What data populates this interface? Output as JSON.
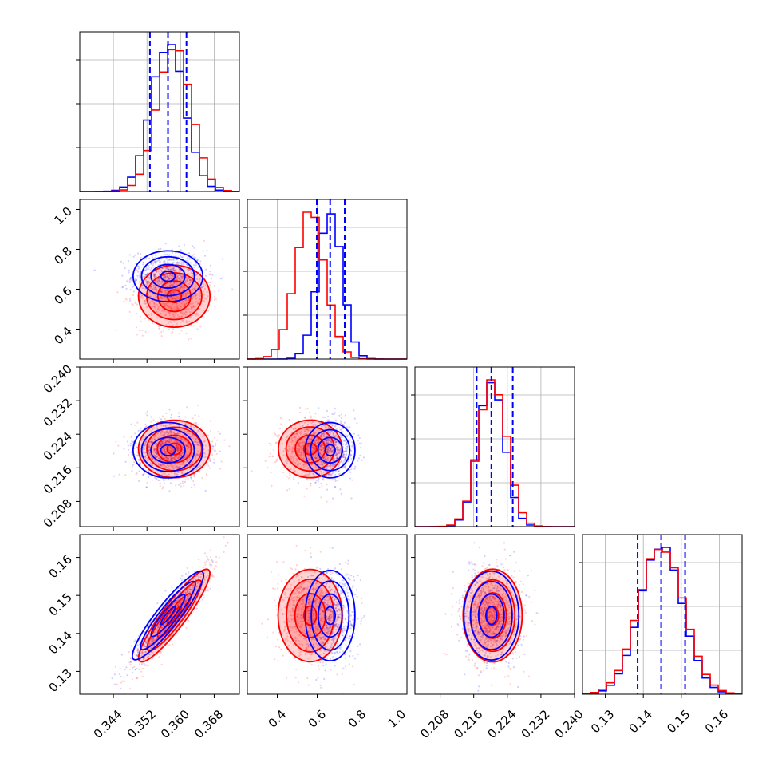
{
  "chart_data": {
    "type": "corner",
    "parameters": [
      {
        "range": [
          0.336,
          0.374
        ],
        "ticks": [
          "0.344",
          "0.352",
          "0.360",
          "0.368"
        ],
        "tick_values": [
          0.344,
          0.352,
          0.36,
          0.368
        ]
      },
      {
        "range": [
          0.25,
          1.05
        ],
        "ticks": [
          "0.4",
          "0.6",
          "0.8",
          "1.0"
        ],
        "tick_values": [
          0.4,
          0.6,
          0.8,
          1.0
        ]
      },
      {
        "range": [
          0.202,
          0.24
        ],
        "ticks": [
          "0.208",
          "0.216",
          "0.224",
          "0.232",
          "0.240"
        ],
        "tick_values": [
          0.208,
          0.216,
          0.224,
          0.232,
          0.24
        ]
      },
      {
        "range": [
          0.124,
          0.166
        ],
        "ticks": [
          "0.13",
          "0.14",
          "0.15",
          "0.16"
        ],
        "tick_values": [
          0.13,
          0.14,
          0.15,
          0.16
        ]
      }
    ],
    "colors": {
      "blue": "#0000ff",
      "red": "#ff0000",
      "grid": "#b0b0b0"
    },
    "series": [
      {
        "color": "blue",
        "mean": [
          0.357,
          0.665,
          0.2202,
          0.1447
        ],
        "std": [
          0.004,
          0.06,
          0.0031,
          0.0056
        ]
      },
      {
        "color": "red",
        "mean": [
          0.3585,
          0.565,
          0.2205,
          0.1447
        ],
        "std": [
          0.004,
          0.075,
          0.0033,
          0.0059
        ]
      }
    ],
    "correlations": [
      {
        "pair": [
          0,
          3
        ],
        "rho": 0.92
      }
    ],
    "quantile_lines": {
      "color": "blue",
      "values": [
        [
          0.3527,
          0.357,
          0.3614
        ],
        [
          0.598,
          0.665,
          0.738
        ],
        [
          0.2167,
          0.2202,
          0.2253
        ],
        [
          0.1385,
          0.1447,
          0.151
        ]
      ]
    },
    "histogram_bins": 20,
    "grid": true,
    "legend": "none"
  }
}
